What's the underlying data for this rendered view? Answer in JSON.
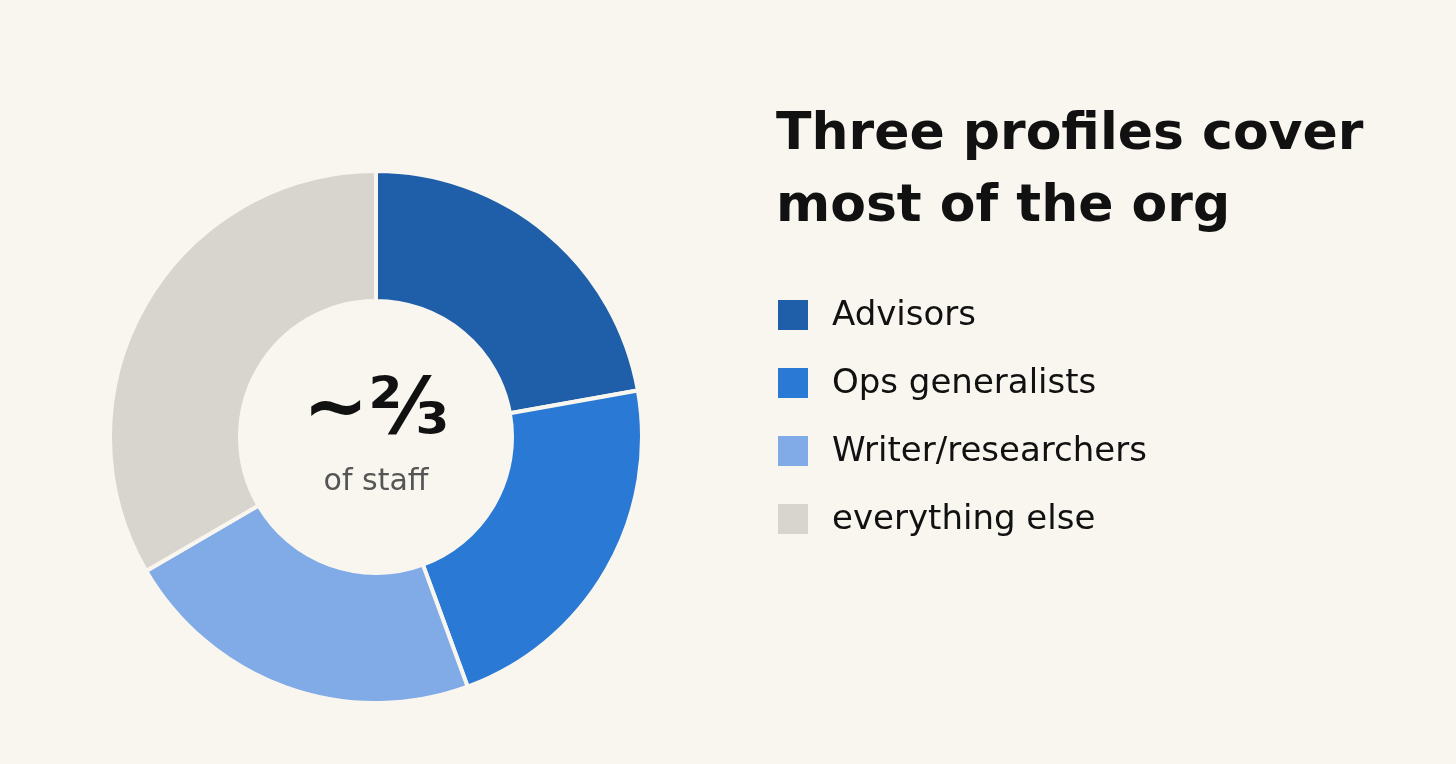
{
  "chart_data": {
    "type": "donut",
    "title": "Three profiles cover most of the org",
    "categories": [
      "Advisors",
      "Ops generalists",
      "Writer/researchers",
      "everything else"
    ],
    "values": [
      22.2,
      22.2,
      22.2,
      33.4
    ],
    "colors": [
      "#1f5ea8",
      "#2a7ad5",
      "#80abe6",
      "#d8d4ce"
    ],
    "annotations": [
      "~⅔",
      "of staff"
    ],
    "legend": "right"
  }
}
